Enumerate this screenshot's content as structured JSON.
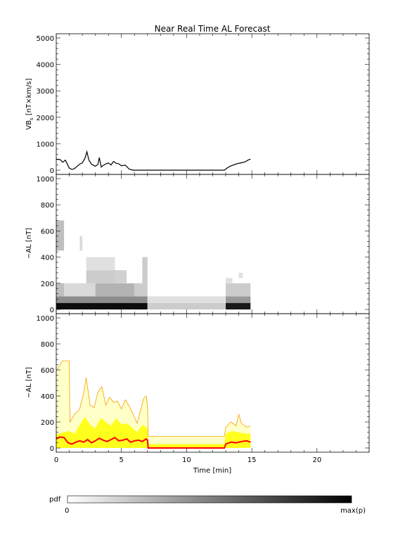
{
  "figure": {
    "title": "Near Real Time AL Forecast",
    "xlabel": "Time [min]",
    "colorbar": {
      "label": "pdf",
      "min_label": "0",
      "max_label": "max(p)"
    }
  },
  "chart_data": [
    {
      "type": "line",
      "ylabel_main": "VB",
      "ylabel_sub": "s",
      "ylabel_rest": " [nT×km/s]",
      "xlim": [
        0,
        24
      ],
      "ylim": [
        0,
        5000
      ],
      "yticks": [
        0,
        1000,
        2000,
        3000,
        4000,
        5000
      ],
      "series": [
        {
          "color": "#000000",
          "x": [
            0,
            0.3,
            0.5,
            0.7,
            1.0,
            1.2,
            1.4,
            1.6,
            1.8,
            2.0,
            2.2,
            2.35,
            2.5,
            2.7,
            3.0,
            3.2,
            3.3,
            3.45,
            3.6,
            3.8,
            4.0,
            4.2,
            4.4,
            4.6,
            4.8,
            5.0,
            5.3,
            5.6,
            5.9,
            6.2,
            7.0,
            10.0,
            12.9,
            13.1,
            13.3,
            13.6,
            13.9,
            14.2,
            14.5,
            14.7,
            14.9
          ],
          "y": [
            420,
            400,
            300,
            380,
            80,
            30,
            60,
            150,
            230,
            280,
            450,
            700,
            380,
            230,
            150,
            220,
            480,
            120,
            180,
            240,
            270,
            200,
            330,
            260,
            240,
            170,
            190,
            40,
            0,
            0,
            0,
            0,
            0,
            80,
            140,
            200,
            250,
            280,
            320,
            380,
            420
          ]
        }
      ]
    },
    {
      "type": "heatmap",
      "ylabel": "−AL [nT]",
      "xlim": [
        0,
        24
      ],
      "ylim": [
        0,
        1000
      ],
      "yticks": [
        0,
        200,
        400,
        600,
        800,
        1000
      ],
      "density": [
        [
          0.0,
          7.0,
          0,
          50,
          0.95
        ],
        [
          7.0,
          13.0,
          0,
          50,
          0.2
        ],
        [
          13.0,
          14.9,
          0,
          50,
          0.9
        ],
        [
          0.0,
          7.0,
          50,
          100,
          0.45
        ],
        [
          7.0,
          13.0,
          50,
          100,
          0.12
        ],
        [
          13.0,
          14.9,
          50,
          100,
          0.4
        ],
        [
          0.0,
          0.6,
          100,
          200,
          0.25
        ],
        [
          0.6,
          3.0,
          100,
          200,
          0.15
        ],
        [
          3.0,
          6.0,
          100,
          200,
          0.3
        ],
        [
          6.0,
          7.0,
          100,
          200,
          0.2
        ],
        [
          13.0,
          14.9,
          100,
          200,
          0.2
        ],
        [
          0.0,
          0.6,
          450,
          680,
          0.25
        ],
        [
          1.8,
          2.0,
          450,
          560,
          0.15
        ],
        [
          2.3,
          4.8,
          200,
          300,
          0.2
        ],
        [
          2.3,
          4.5,
          300,
          400,
          0.12
        ],
        [
          4.5,
          5.4,
          200,
          300,
          0.18
        ],
        [
          6.6,
          7.0,
          200,
          400,
          0.2
        ],
        [
          13.0,
          13.5,
          200,
          240,
          0.12
        ],
        [
          14.0,
          14.3,
          240,
          280,
          0.12
        ]
      ]
    },
    {
      "type": "area",
      "ylabel": "−AL [nT]",
      "xlim": [
        0,
        24
      ],
      "ylim": [
        0,
        1000
      ],
      "yticks": [
        0,
        200,
        400,
        600,
        800,
        1000
      ],
      "xticks": [
        0,
        5,
        10,
        15,
        20
      ],
      "upper_envelope": {
        "color": "#f5a000",
        "x": [
          0,
          0.4,
          0.5,
          1.0,
          1.05,
          1.4,
          1.8,
          2.1,
          2.3,
          2.6,
          2.9,
          3.2,
          3.5,
          3.8,
          4.1,
          4.4,
          4.7,
          5.0,
          5.3,
          5.6,
          5.9,
          6.2,
          6.5,
          6.7,
          6.9,
          7.0,
          7.05,
          12.9,
          13.0,
          13.4,
          13.8,
          14.0,
          14.2,
          14.6,
          14.9
        ],
        "y": [
          590,
          660,
          670,
          670,
          200,
          260,
          300,
          420,
          540,
          330,
          310,
          430,
          470,
          330,
          390,
          350,
          360,
          300,
          370,
          320,
          260,
          190,
          300,
          380,
          400,
          320,
          90,
          90,
          160,
          200,
          170,
          260,
          190,
          160,
          170
        ]
      },
      "lower_band": {
        "color": "#ffff00",
        "x": [
          0,
          0.5,
          1.0,
          1.4,
          1.8,
          2.2,
          2.6,
          3.0,
          3.4,
          3.8,
          4.2,
          4.6,
          5.0,
          5.4,
          5.8,
          6.2,
          6.6,
          7.0,
          7.05,
          12.9,
          13.0,
          13.5,
          14.0,
          14.5,
          14.9
        ],
        "y": [
          100,
          120,
          130,
          110,
          180,
          240,
          180,
          150,
          230,
          200,
          170,
          230,
          180,
          190,
          160,
          120,
          180,
          150,
          30,
          30,
          110,
          130,
          120,
          110,
          110
        ]
      },
      "median": {
        "color": "#ff0000",
        "x": [
          0,
          0.3,
          0.6,
          0.9,
          1.2,
          1.5,
          1.8,
          2.1,
          2.4,
          2.7,
          3.0,
          3.3,
          3.6,
          3.9,
          4.2,
          4.5,
          4.8,
          5.1,
          5.4,
          5.7,
          6.0,
          6.3,
          6.6,
          6.9,
          7.0,
          7.05,
          12.9,
          13.0,
          13.4,
          13.8,
          14.2,
          14.6,
          14.9
        ],
        "y": [
          70,
          85,
          80,
          40,
          30,
          45,
          55,
          45,
          65,
          40,
          55,
          75,
          60,
          50,
          65,
          80,
          55,
          60,
          70,
          45,
          55,
          60,
          50,
          70,
          60,
          0,
          0,
          30,
          45,
          40,
          50,
          55,
          45
        ]
      }
    }
  ]
}
